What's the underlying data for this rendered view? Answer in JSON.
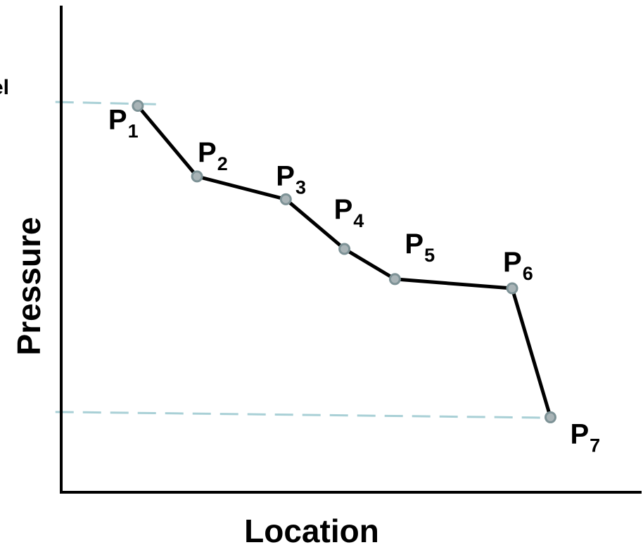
{
  "colors": {
    "line": "#000000",
    "axis": "#000000",
    "marker_fill": "#a9b4b7",
    "marker_stroke": "#7d9296",
    "reference_line": "#a9d0d6"
  },
  "edge_text": "el",
  "chart_data": {
    "type": "line",
    "xlabel": "Location",
    "ylabel": "Pressure",
    "grid": false,
    "legend": "none",
    "xlim": [
      0,
      100
    ],
    "ylim": [
      0,
      100
    ],
    "series": [
      {
        "points": [
          {
            "label": "P",
            "sub": "1",
            "x": 13.2,
            "y": 79.4
          },
          {
            "label": "P",
            "sub": "2",
            "x": 23.4,
            "y": 64.9
          },
          {
            "label": "P",
            "sub": "3",
            "x": 38.7,
            "y": 60.2
          },
          {
            "label": "P",
            "sub": "4",
            "x": 48.8,
            "y": 50.0
          },
          {
            "label": "P",
            "sub": "5",
            "x": 57.5,
            "y": 43.8
          },
          {
            "label": "P",
            "sub": "6",
            "x": 77.7,
            "y": 41.9
          },
          {
            "label": "P",
            "sub": "7",
            "x": 84.3,
            "y": 15.4
          }
        ]
      }
    ],
    "reference_lines": [
      {
        "style": "dashed",
        "y_start": 80.2,
        "y_end": 79.7,
        "x_start": -1.0,
        "x_end": 17.5
      },
      {
        "style": "dashed",
        "y_start": 16.5,
        "y_end": 15.3,
        "x_start": -1.0,
        "x_end": 84.3
      }
    ]
  }
}
